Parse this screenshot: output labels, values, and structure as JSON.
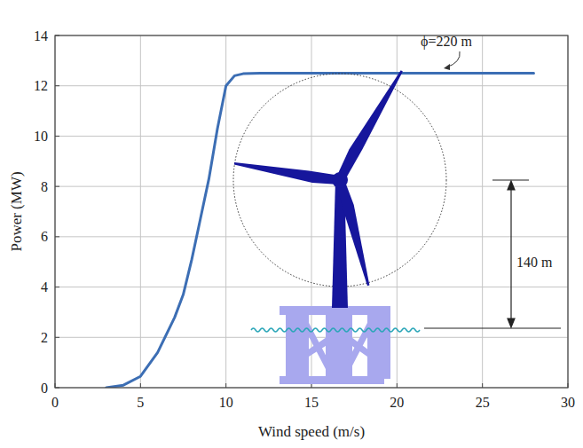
{
  "chart_data": {
    "type": "line",
    "x_label": "Wind speed (m/s)",
    "y_label": "Power (MW)",
    "x": [
      3,
      4,
      5,
      6,
      7,
      7.5,
      8,
      8.5,
      9,
      9.5,
      10,
      10.5,
      11,
      12,
      15,
      20,
      25,
      28
    ],
    "values": [
      0,
      0.1,
      0.45,
      1.4,
      2.8,
      3.7,
      5.1,
      6.7,
      8.3,
      10.3,
      12.0,
      12.4,
      12.48,
      12.5,
      12.5,
      12.5,
      12.5,
      12.5
    ],
    "color": "#3c6eb4",
    "xlim": [
      0,
      30
    ],
    "xticks": [
      0,
      5,
      10,
      15,
      20,
      25,
      30
    ],
    "ylim": [
      0,
      14
    ],
    "yticks": [
      0,
      2,
      4,
      6,
      8,
      10,
      12,
      14
    ],
    "grid": true,
    "annotations": [
      {
        "text": "ϕ=220 m"
      },
      {
        "text": "140 m"
      }
    ]
  }
}
